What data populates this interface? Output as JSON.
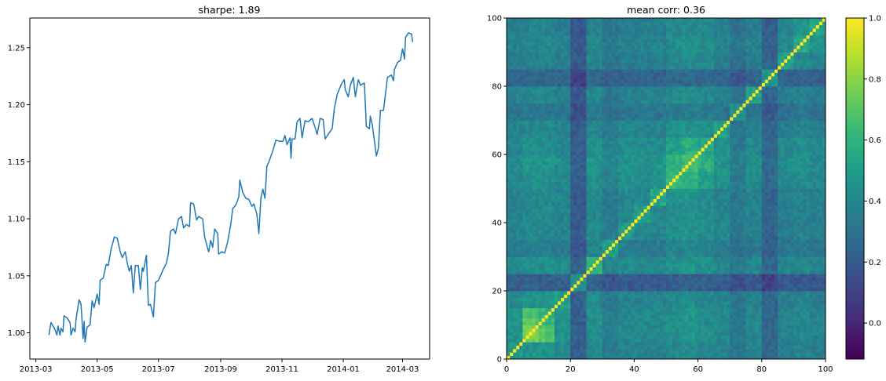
{
  "chart_data": [
    {
      "type": "line",
      "title": "sharpe: 1.89",
      "xlabel": "",
      "ylabel": "",
      "xlim": [
        "2013-02-23",
        "2014-03-28"
      ],
      "ylim": [
        0.977,
        1.276
      ],
      "grid": false,
      "color": "#1f77b4",
      "x_tick_labels": [
        "2013-03",
        "2013-05",
        "2013-07",
        "2013-09",
        "2013-11",
        "2014-01",
        "2014-03"
      ],
      "y_ticks": [
        1.0,
        1.05,
        1.1,
        1.15,
        1.2,
        1.25
      ],
      "y_tick_labels": [
        "1.00",
        "1.05",
        "1.10",
        "1.15",
        "1.20",
        "1.25"
      ],
      "x": [
        "2013-03-14",
        "2013-03-16",
        "2013-03-20",
        "2013-03-22",
        "2013-03-23",
        "2013-03-25",
        "2013-03-26",
        "2013-03-28",
        "2013-03-29",
        "2013-04-01",
        "2013-04-04",
        "2013-04-05",
        "2013-04-07",
        "2013-04-09",
        "2013-04-10",
        "2013-04-13",
        "2013-04-15",
        "2013-04-17",
        "2013-04-18",
        "2013-04-19",
        "2013-04-21",
        "2013-04-24",
        "2013-04-26",
        "2013-04-28",
        "2013-05-01",
        "2013-05-03",
        "2013-05-04",
        "2013-05-07",
        "2013-05-10",
        "2013-05-12",
        "2013-05-15",
        "2013-05-17",
        "2013-05-18",
        "2013-05-21",
        "2013-05-24",
        "2013-05-26",
        "2013-05-29",
        "2013-05-31",
        "2013-06-02",
        "2013-06-04",
        "2013-06-06",
        "2013-06-08",
        "2013-06-11",
        "2013-06-13",
        "2013-06-15",
        "2013-06-16",
        "2013-06-19",
        "2013-06-21",
        "2013-06-23",
        "2013-06-26",
        "2013-06-28",
        "2013-07-01",
        "2013-07-03",
        "2013-07-06",
        "2013-07-09",
        "2013-07-11",
        "2013-07-13",
        "2013-07-16",
        "2013-07-18",
        "2013-07-21",
        "2013-07-24",
        "2013-07-26",
        "2013-07-29",
        "2013-08-01",
        "2013-08-02",
        "2013-08-05",
        "2013-08-08",
        "2013-08-10",
        "2013-08-14",
        "2013-08-16",
        "2013-08-20",
        "2013-08-22",
        "2013-08-24",
        "2013-08-26",
        "2013-08-29",
        "2013-08-30",
        "2013-09-02",
        "2013-09-05",
        "2013-09-08",
        "2013-09-11",
        "2013-09-13",
        "2013-09-16",
        "2013-09-19",
        "2013-09-20",
        "2013-09-23",
        "2013-09-26",
        "2013-09-29",
        "2013-10-02",
        "2013-10-04",
        "2013-10-07",
        "2013-10-09",
        "2013-10-11",
        "2013-10-13",
        "2013-10-15",
        "2013-10-17",
        "2013-10-19",
        "2013-10-23",
        "2013-10-26",
        "2013-10-29",
        "2013-11-02",
        "2013-11-04",
        "2013-11-06",
        "2013-11-09",
        "2013-11-10",
        "2013-11-11",
        "2013-11-14",
        "2013-11-16",
        "2013-11-19",
        "2013-11-21",
        "2013-11-24",
        "2013-11-27",
        "2013-12-01",
        "2013-12-04",
        "2013-12-06",
        "2013-12-09",
        "2013-12-12",
        "2013-12-14",
        "2013-12-17",
        "2013-12-21",
        "2013-12-23",
        "2013-12-26",
        "2013-12-30",
        "2014-01-02",
        "2014-01-03",
        "2014-01-06",
        "2014-01-08",
        "2014-01-11",
        "2014-01-13",
        "2014-01-16",
        "2014-01-18",
        "2014-01-22",
        "2014-01-24",
        "2014-01-27",
        "2014-01-28",
        "2014-01-30",
        "2014-02-03",
        "2014-02-05",
        "2014-02-07",
        "2014-02-10",
        "2014-02-12",
        "2014-02-14",
        "2014-02-18",
        "2014-02-20",
        "2014-02-21",
        "2014-02-24",
        "2014-02-27",
        "2014-03-01",
        "2014-03-03",
        "2014-03-04",
        "2014-03-07",
        "2014-03-10",
        "2014-03-11"
      ],
      "y": [
        0.998,
        1.009,
        1.003,
        0.998,
        1.006,
        0.998,
        1.004,
        1.001,
        1.015,
        1.013,
        1.009,
        0.998,
        1.004,
        1.001,
        1.012,
        1.029,
        1.025,
        0.995,
        1.01,
        0.992,
        1.005,
        1.007,
        1.028,
        1.022,
        1.034,
        1.025,
        1.046,
        1.048,
        1.06,
        1.059,
        1.074,
        1.08,
        1.084,
        1.083,
        1.071,
        1.066,
        1.071,
        1.061,
        1.054,
        1.059,
        1.035,
        1.059,
        1.059,
        1.038,
        1.057,
        1.054,
        1.068,
        1.024,
        1.025,
        1.014,
        1.044,
        1.046,
        1.05,
        1.056,
        1.061,
        1.07,
        1.089,
        1.091,
        1.087,
        1.1,
        1.102,
        1.092,
        1.095,
        1.093,
        1.114,
        1.113,
        1.099,
        1.102,
        1.1,
        1.084,
        1.071,
        1.081,
        1.075,
        1.091,
        1.087,
        1.069,
        1.071,
        1.07,
        1.08,
        1.095,
        1.109,
        1.112,
        1.119,
        1.134,
        1.123,
        1.118,
        1.117,
        1.111,
        1.113,
        1.104,
        1.087,
        1.118,
        1.126,
        1.118,
        1.146,
        1.15,
        1.16,
        1.169,
        1.168,
        1.168,
        1.173,
        1.165,
        1.171,
        1.153,
        1.17,
        1.17,
        1.185,
        1.188,
        1.171,
        1.186,
        1.185,
        1.188,
        1.18,
        1.174,
        1.188,
        1.187,
        1.17,
        1.174,
        1.179,
        1.196,
        1.209,
        1.218,
        1.222,
        1.213,
        1.207,
        1.217,
        1.224,
        1.207,
        1.222,
        1.217,
        1.219,
        1.181,
        1.179,
        1.19,
        1.182,
        1.155,
        1.162,
        1.195,
        1.195,
        1.209,
        1.224,
        1.226,
        1.221,
        1.231,
        1.237,
        1.239,
        1.249,
        1.24,
        1.259,
        1.263,
        1.262,
        1.255
      ]
    },
    {
      "type": "heatmap",
      "title": "mean corr: 0.36",
      "xlabel": "",
      "ylabel": "",
      "xlim": [
        0,
        100
      ],
      "ylim": [
        0,
        100
      ],
      "origin": "lower",
      "x_ticks": [
        0,
        20,
        40,
        60,
        80,
        100
      ],
      "y_ticks": [
        0,
        20,
        40,
        60,
        80,
        100
      ],
      "colormap": "viridis",
      "vmin": -0.118,
      "vmax": 1.0,
      "diagonal": 1.0,
      "colorbar": {
        "position": "right",
        "ticks": [
          0.0,
          0.2,
          0.4,
          0.6,
          0.8,
          1.0
        ],
        "tick_labels": [
          "0.0",
          "0.2",
          "0.4",
          "0.6",
          "0.8",
          "1.0"
        ]
      },
      "block_size": 5,
      "block_values": [
        [
          0.5,
          0.45,
          0.45,
          0.4,
          0.22,
          0.4,
          0.34,
          0.38,
          0.38,
          0.38,
          0.4,
          0.42,
          0.4,
          0.38,
          0.32,
          0.38,
          0.25,
          0.36,
          0.38,
          0.36
        ],
        [
          0.45,
          0.78,
          0.7,
          0.45,
          0.24,
          0.44,
          0.36,
          0.4,
          0.4,
          0.4,
          0.44,
          0.46,
          0.44,
          0.4,
          0.34,
          0.4,
          0.26,
          0.38,
          0.4,
          0.38
        ],
        [
          0.45,
          0.7,
          0.62,
          0.45,
          0.22,
          0.44,
          0.36,
          0.4,
          0.4,
          0.4,
          0.44,
          0.46,
          0.42,
          0.4,
          0.32,
          0.4,
          0.25,
          0.38,
          0.4,
          0.38
        ],
        [
          0.4,
          0.45,
          0.45,
          0.5,
          0.22,
          0.42,
          0.34,
          0.38,
          0.38,
          0.38,
          0.4,
          0.42,
          0.4,
          0.38,
          0.32,
          0.38,
          0.25,
          0.36,
          0.38,
          0.36
        ],
        [
          0.22,
          0.24,
          0.22,
          0.22,
          0.45,
          0.24,
          0.18,
          0.2,
          0.2,
          0.2,
          0.22,
          0.22,
          0.22,
          0.2,
          0.16,
          0.2,
          0.1,
          0.2,
          0.2,
          0.18
        ],
        [
          0.4,
          0.44,
          0.44,
          0.42,
          0.24,
          0.6,
          0.38,
          0.42,
          0.4,
          0.4,
          0.44,
          0.46,
          0.44,
          0.4,
          0.34,
          0.4,
          0.26,
          0.38,
          0.4,
          0.38
        ],
        [
          0.34,
          0.36,
          0.36,
          0.34,
          0.18,
          0.38,
          0.5,
          0.36,
          0.34,
          0.34,
          0.38,
          0.4,
          0.38,
          0.34,
          0.3,
          0.34,
          0.22,
          0.32,
          0.34,
          0.32
        ],
        [
          0.38,
          0.4,
          0.4,
          0.38,
          0.2,
          0.42,
          0.36,
          0.5,
          0.4,
          0.4,
          0.44,
          0.46,
          0.42,
          0.4,
          0.32,
          0.38,
          0.24,
          0.36,
          0.38,
          0.36
        ],
        [
          0.38,
          0.4,
          0.4,
          0.38,
          0.2,
          0.4,
          0.34,
          0.4,
          0.5,
          0.4,
          0.42,
          0.44,
          0.42,
          0.38,
          0.32,
          0.38,
          0.24,
          0.36,
          0.38,
          0.36
        ],
        [
          0.38,
          0.4,
          0.4,
          0.38,
          0.2,
          0.4,
          0.34,
          0.4,
          0.4,
          0.55,
          0.46,
          0.46,
          0.42,
          0.38,
          0.32,
          0.38,
          0.24,
          0.36,
          0.38,
          0.36
        ],
        [
          0.4,
          0.44,
          0.44,
          0.4,
          0.22,
          0.44,
          0.38,
          0.44,
          0.42,
          0.46,
          0.62,
          0.6,
          0.5,
          0.44,
          0.36,
          0.42,
          0.26,
          0.4,
          0.42,
          0.4
        ],
        [
          0.42,
          0.46,
          0.46,
          0.42,
          0.22,
          0.46,
          0.4,
          0.46,
          0.44,
          0.46,
          0.6,
          0.65,
          0.58,
          0.46,
          0.36,
          0.44,
          0.26,
          0.42,
          0.44,
          0.42
        ],
        [
          0.4,
          0.44,
          0.42,
          0.4,
          0.22,
          0.44,
          0.38,
          0.42,
          0.42,
          0.42,
          0.5,
          0.58,
          0.55,
          0.44,
          0.34,
          0.42,
          0.26,
          0.4,
          0.42,
          0.4
        ],
        [
          0.38,
          0.4,
          0.4,
          0.38,
          0.2,
          0.4,
          0.34,
          0.4,
          0.38,
          0.38,
          0.44,
          0.46,
          0.44,
          0.5,
          0.32,
          0.38,
          0.24,
          0.36,
          0.38,
          0.36
        ],
        [
          0.32,
          0.34,
          0.32,
          0.32,
          0.16,
          0.34,
          0.3,
          0.32,
          0.32,
          0.32,
          0.36,
          0.36,
          0.34,
          0.32,
          0.45,
          0.32,
          0.2,
          0.3,
          0.32,
          0.3
        ],
        [
          0.38,
          0.4,
          0.4,
          0.38,
          0.2,
          0.4,
          0.34,
          0.38,
          0.38,
          0.38,
          0.42,
          0.44,
          0.42,
          0.38,
          0.32,
          0.5,
          0.24,
          0.36,
          0.38,
          0.36
        ],
        [
          0.25,
          0.26,
          0.25,
          0.25,
          0.1,
          0.26,
          0.22,
          0.24,
          0.24,
          0.24,
          0.26,
          0.26,
          0.26,
          0.24,
          0.2,
          0.24,
          0.45,
          0.24,
          0.24,
          0.22
        ],
        [
          0.36,
          0.38,
          0.38,
          0.36,
          0.2,
          0.38,
          0.32,
          0.36,
          0.36,
          0.36,
          0.4,
          0.42,
          0.4,
          0.36,
          0.3,
          0.36,
          0.24,
          0.5,
          0.4,
          0.38
        ],
        [
          0.38,
          0.4,
          0.4,
          0.38,
          0.2,
          0.4,
          0.34,
          0.38,
          0.38,
          0.38,
          0.42,
          0.44,
          0.42,
          0.38,
          0.32,
          0.38,
          0.24,
          0.4,
          0.55,
          0.45
        ],
        [
          0.36,
          0.38,
          0.38,
          0.36,
          0.18,
          0.38,
          0.32,
          0.36,
          0.36,
          0.36,
          0.4,
          0.42,
          0.4,
          0.36,
          0.3,
          0.36,
          0.22,
          0.38,
          0.45,
          0.55
        ]
      ]
    }
  ]
}
